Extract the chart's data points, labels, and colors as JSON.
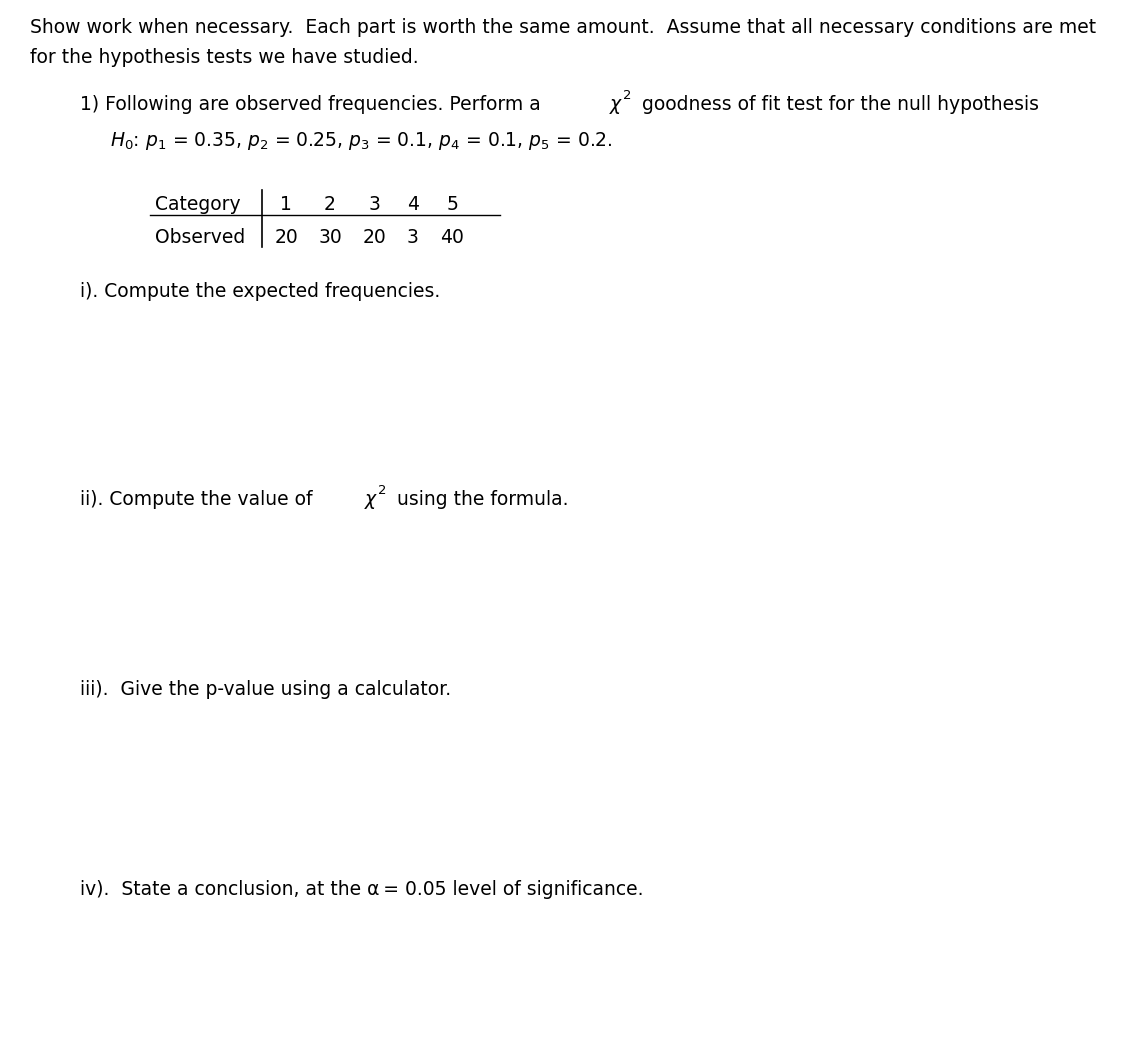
{
  "bg_color": "#ffffff",
  "header_line1": "Show work when necessary.  Each part is worth the same amount.  Assume that all necessary conditions are met",
  "header_line2": "for the hypothesis tests we have studied.",
  "fs": 13.5,
  "fs_small": 9.5,
  "fig_w": 11.25,
  "fig_h": 10.4,
  "dpi": 100,
  "table_categories": [
    "1",
    "2",
    "3",
    "4",
    "5"
  ],
  "table_observed": [
    "20",
    "30",
    "20",
    "3",
    "40"
  ]
}
